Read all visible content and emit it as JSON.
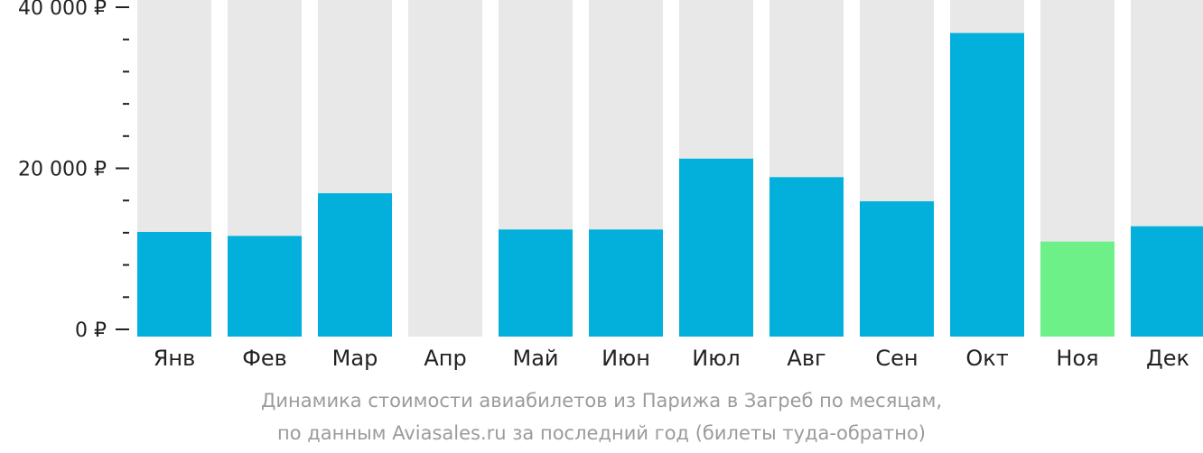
{
  "chart_data": {
    "type": "bar",
    "categories": [
      "Янв",
      "Фев",
      "Мар",
      "Апр",
      "Май",
      "Июн",
      "Июл",
      "Авг",
      "Сен",
      "Окт",
      "Ноя",
      "Дек"
    ],
    "values": [
      12100,
      11600,
      16900,
      null,
      12400,
      12400,
      21200,
      18900,
      15900,
      36800,
      10900,
      12800
    ],
    "highlight_index": 10,
    "ylim": [
      0,
      40000
    ],
    "yticks": [
      {
        "value": 0,
        "label": "0 ₽"
      },
      {
        "value": 20000,
        "label": "20 000 ₽"
      },
      {
        "value": 40000,
        "label": "40 000 ₽"
      }
    ],
    "minor_tick_step": 4000,
    "grid": false,
    "xlabel": "",
    "ylabel": "",
    "title": ""
  },
  "caption": {
    "line1": "Динамика стоимости авиабилетов из Парижа в Загреб по месяцам,",
    "line2": "по данным Aviasales.ru за последний год (билеты туда-обратно)"
  },
  "colors": {
    "bar": "#03b0db",
    "bar_highlight": "#6cf087",
    "bar_background": "#e8e8e8",
    "axis_text": "#222222",
    "caption_text": "#9b9b9b"
  }
}
